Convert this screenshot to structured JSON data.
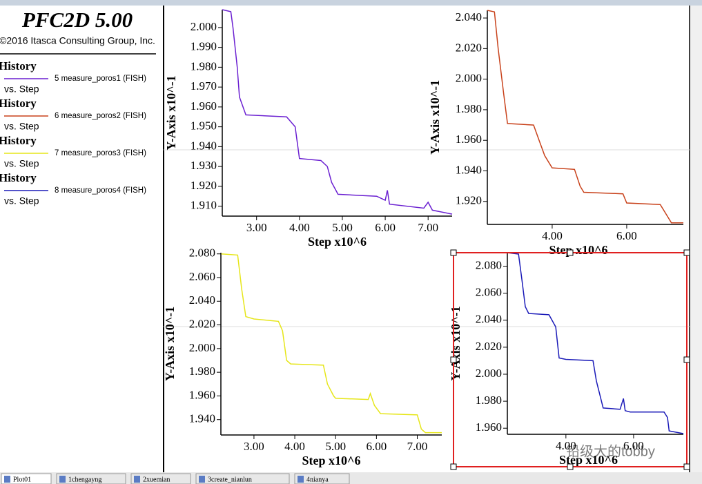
{
  "header": {
    "title": "PFC2D 5.00",
    "copyright": "©2016 Itasca Consulting Group, Inc."
  },
  "legend": [
    {
      "title": "History",
      "name": "5 measure_poros1 (FISH)",
      "sub": "vs. Step",
      "color": "#6a1fd1"
    },
    {
      "title": "History",
      "name": "6 measure_poros2 (FISH)",
      "sub": "vs. Step",
      "color": "#c8411a"
    },
    {
      "title": "History",
      "name": "7 measure_poros3 (FISH)",
      "sub": "vs. Step",
      "color": "#e6e619"
    },
    {
      "title": "History",
      "name": "8 measure_poros4 (FISH)",
      "sub": "vs. Step",
      "color": "#1a1ab8"
    }
  ],
  "charts": [
    {
      "type": "line",
      "x_label": "Step x10^6",
      "y_label": "Y-Axis x10^-1",
      "color": "#6a1fd1",
      "xlim": [
        2.2,
        7.56
      ],
      "xticks": [
        {
          "value": 3,
          "label": "3.00"
        },
        {
          "value": 4,
          "label": "4.00"
        },
        {
          "value": 5,
          "label": "5.00"
        },
        {
          "value": 6,
          "label": "6.00"
        },
        {
          "value": 7,
          "label": "7.00"
        }
      ],
      "ylim": [
        1.905,
        2.009
      ],
      "yticks": [
        {
          "value": 1.91,
          "label": "1.910"
        },
        {
          "value": 1.92,
          "label": "1.920"
        },
        {
          "value": 1.93,
          "label": "1.930"
        },
        {
          "value": 1.94,
          "label": "1.940"
        },
        {
          "value": 1.95,
          "label": "1.950"
        },
        {
          "value": 1.96,
          "label": "1.960"
        },
        {
          "value": 1.97,
          "label": "1.970"
        },
        {
          "value": 1.98,
          "label": "1.980"
        },
        {
          "value": 1.99,
          "label": "1.990"
        },
        {
          "value": 2,
          "label": "2.000"
        }
      ],
      "x": [
        2.2,
        2.4,
        2.45,
        2.55,
        2.6,
        2.75,
        3.7,
        3.9,
        4.0,
        4.5,
        4.65,
        4.75,
        4.9,
        5.8,
        6.0,
        6.05,
        6.1,
        6.9,
        7.0,
        7.1,
        7.56
      ],
      "values": [
        2.009,
        2.008,
        2.0,
        1.98,
        1.965,
        1.956,
        1.955,
        1.95,
        1.934,
        1.933,
        1.93,
        1.922,
        1.916,
        1.915,
        1.913,
        1.918,
        1.911,
        1.909,
        1.912,
        1.908,
        1.906
      ]
    },
    {
      "type": "line",
      "x_label": "Step x10^6",
      "y_label": "Y-Axis x10^-1",
      "color": "#c8411a",
      "xlim": [
        2.26,
        7.52
      ],
      "xticks": [
        {
          "value": 4,
          "label": "4.00"
        },
        {
          "value": 6,
          "label": "6.00"
        }
      ],
      "ylim": [
        1.905,
        2.045
      ],
      "yticks": [
        {
          "value": 1.92,
          "label": "1.920"
        },
        {
          "value": 1.94,
          "label": "1.940"
        },
        {
          "value": 1.96,
          "label": "1.960"
        },
        {
          "value": 1.98,
          "label": "1.980"
        },
        {
          "value": 2,
          "label": "2.000"
        },
        {
          "value": 2.02,
          "label": "2.020"
        },
        {
          "value": 2.04,
          "label": "2.040"
        }
      ],
      "x": [
        2.26,
        2.45,
        2.55,
        2.7,
        2.8,
        3.5,
        3.65,
        3.8,
        4.0,
        4.6,
        4.75,
        4.85,
        5.9,
        6.0,
        6.9,
        7.1,
        7.2,
        7.52
      ],
      "values": [
        2.045,
        2.044,
        2.02,
        1.99,
        1.971,
        1.97,
        1.96,
        1.95,
        1.942,
        1.941,
        1.93,
        1.926,
        1.925,
        1.919,
        1.918,
        1.91,
        1.906,
        1.906
      ]
    },
    {
      "type": "line",
      "x_label": "Step x10^6",
      "y_label": "Y-Axis x10^-1",
      "color": "#e6e619",
      "xlim": [
        2.19,
        7.6
      ],
      "xticks": [
        {
          "value": 3,
          "label": "3.00"
        },
        {
          "value": 4,
          "label": "4.00"
        },
        {
          "value": 5,
          "label": "5.00"
        },
        {
          "value": 6,
          "label": "6.00"
        },
        {
          "value": 7,
          "label": "7.00"
        }
      ],
      "ylim": [
        1.927,
        2.081
      ],
      "yticks": [
        {
          "value": 1.94,
          "label": "1.940"
        },
        {
          "value": 1.96,
          "label": "1.960"
        },
        {
          "value": 1.98,
          "label": "1.980"
        },
        {
          "value": 2,
          "label": "2.000"
        },
        {
          "value": 2.02,
          "label": "2.020"
        },
        {
          "value": 2.04,
          "label": "2.040"
        },
        {
          "value": 2.06,
          "label": "2.060"
        },
        {
          "value": 2.08,
          "label": "2.080"
        }
      ],
      "x": [
        2.2,
        2.6,
        2.7,
        2.8,
        3.0,
        3.6,
        3.7,
        3.8,
        3.9,
        4.7,
        4.8,
        4.95,
        5.0,
        5.8,
        5.85,
        5.95,
        6.1,
        7.0,
        7.1,
        7.2,
        7.6
      ],
      "values": [
        2.08,
        2.079,
        2.05,
        2.027,
        2.025,
        2.023,
        2.015,
        1.99,
        1.987,
        1.986,
        1.97,
        1.96,
        1.958,
        1.957,
        1.962,
        1.952,
        1.945,
        1.944,
        1.932,
        1.929,
        1.929
      ]
    },
    {
      "type": "line",
      "x_label": "Step x10^6",
      "y_label": "Y-Axis x10^-1",
      "color": "#1a1ab8",
      "xlim": [
        2.27,
        7.47
      ],
      "xticks": [
        {
          "value": 4,
          "label": "4.00"
        },
        {
          "value": 6,
          "label": "6.00"
        }
      ],
      "ylim": [
        1.9555,
        2.09
      ],
      "yticks": [
        {
          "value": 1.96,
          "label": "1.960"
        },
        {
          "value": 1.98,
          "label": "1.980"
        },
        {
          "value": 2,
          "label": "2.000"
        },
        {
          "value": 2.02,
          "label": "2.020"
        },
        {
          "value": 2.04,
          "label": "2.040"
        },
        {
          "value": 2.06,
          "label": "2.060"
        },
        {
          "value": 2.08,
          "label": "2.080"
        }
      ],
      "x": [
        2.27,
        2.6,
        2.7,
        2.8,
        2.9,
        3.5,
        3.7,
        3.8,
        4.0,
        4.8,
        4.9,
        5.0,
        5.1,
        5.6,
        5.7,
        5.75,
        5.9,
        6.9,
        7.0,
        7.05,
        7.47
      ],
      "values": [
        2.09,
        2.089,
        2.07,
        2.05,
        2.045,
        2.044,
        2.035,
        2.012,
        2.011,
        2.01,
        1.995,
        1.985,
        1.975,
        1.974,
        1.982,
        1.973,
        1.972,
        1.972,
        1.968,
        1.958,
        1.956
      ]
    }
  ],
  "tabs": [
    "Plot01",
    "1chengayng",
    "2xuemian",
    "3create_nianlun",
    "4nianya"
  ],
  "watermark": "铅级大的tobby"
}
